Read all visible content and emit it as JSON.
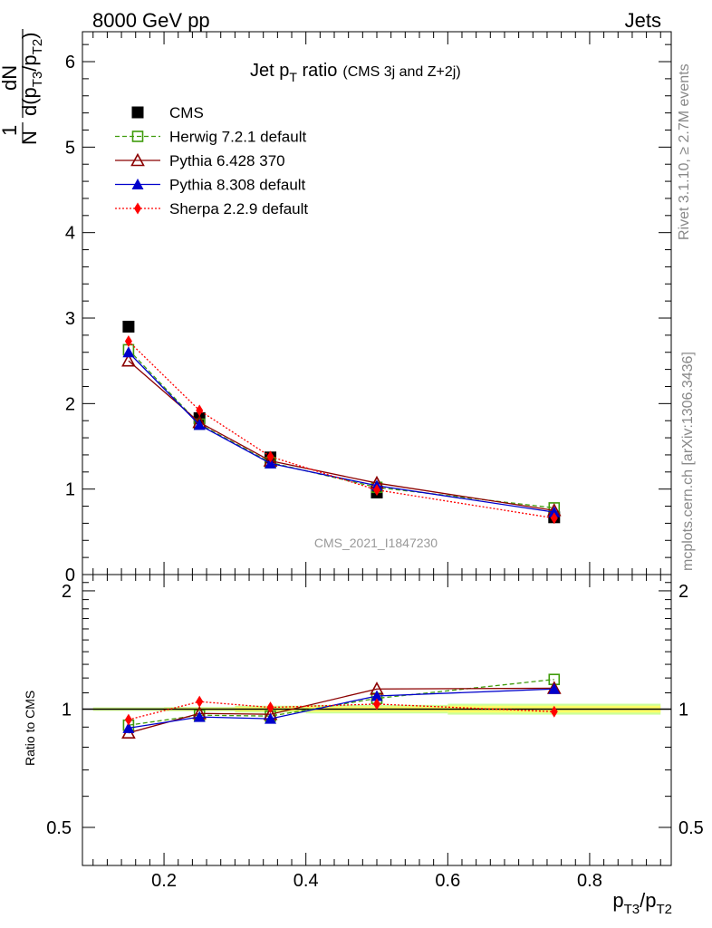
{
  "header": {
    "left": "8000 GeV pp",
    "right": "Jets"
  },
  "side": {
    "rivet": "Rivet 3.1.10, ≥ 2.7M events",
    "mcplots": "mcplots.cern.ch [arXiv:1306.3436]"
  },
  "watermark": "CMS_2021_I1847230",
  "title": {
    "main": "Jet p",
    "sub": "T",
    "rest": " ratio",
    "small": "(CMS 3j and Z+2j)"
  },
  "ylabel_top": {
    "frac_num": "1",
    "frac_den": "N",
    "dN": "dN",
    "d": "d(p",
    "sub1": "T3",
    "slash": "/p",
    "sub2": "T2",
    "close": ")"
  },
  "ylabel_bottom": "Ratio to CMS",
  "xlabel": {
    "p1": "p",
    "s1": "T3",
    "p2": "/p",
    "s2": "T2"
  },
  "colors": {
    "CMS": "#000000",
    "Herwig": "#3f9b0b",
    "Pythia6": "#8b0000",
    "Pythia8": "#0000cc",
    "Sherpa": "#ff0000",
    "band_inner": "#ffff66",
    "band_outer": "#ccff99"
  },
  "chart_data": [
    {
      "type": "scatter",
      "x_range": [
        0.085,
        0.915
      ],
      "ylim": [
        0,
        6.35
      ],
      "y_ticks": [
        0,
        1,
        2,
        3,
        4,
        5,
        6
      ],
      "legend_position": "top-left",
      "series": [
        {
          "name": "CMS",
          "key": "CMS",
          "style": "data-square",
          "x": [
            0.15,
            0.25,
            0.35,
            0.5,
            0.75
          ],
          "y": [
            2.9,
            1.83,
            1.37,
            0.96,
            0.67
          ]
        },
        {
          "name": "Herwig 7.2.1 default",
          "key": "Herwig",
          "style": "open-square-dashed",
          "x": [
            0.15,
            0.25,
            0.35,
            0.5,
            0.75
          ],
          "y": [
            2.63,
            1.76,
            1.31,
            1.02,
            0.78
          ]
        },
        {
          "name": "Pythia 6.428 370",
          "key": "Pythia6",
          "style": "open-triangle-solid",
          "x": [
            0.15,
            0.25,
            0.35,
            0.5,
            0.75
          ],
          "y": [
            2.5,
            1.78,
            1.33,
            1.07,
            0.75
          ]
        },
        {
          "name": "Pythia 8.308 default",
          "key": "Pythia8",
          "style": "filled-triangle-solid",
          "x": [
            0.15,
            0.25,
            0.35,
            0.5,
            0.75
          ],
          "y": [
            2.6,
            1.75,
            1.3,
            1.04,
            0.73
          ]
        },
        {
          "name": "Sherpa 2.2.9 default",
          "key": "Sherpa",
          "style": "diamond-dotted",
          "x": [
            0.15,
            0.25,
            0.35,
            0.5,
            0.75
          ],
          "y": [
            2.73,
            1.92,
            1.38,
            0.99,
            0.66
          ]
        }
      ]
    },
    {
      "type": "line",
      "ylabel": "Ratio to CMS",
      "scale": "log",
      "x_range": [
        0.085,
        0.915
      ],
      "ylim": [
        0.4,
        2.2
      ],
      "y_ticks": [
        0.5,
        1,
        2
      ],
      "x_ticks": [
        0.2,
        0.4,
        0.6,
        0.8
      ],
      "band": {
        "x": [
          0.1,
          0.2,
          0.3,
          0.4,
          0.6,
          0.9
        ],
        "inner": [
          0.005,
          0.007,
          0.012,
          0.015,
          0.02
        ],
        "outer": [
          0.01,
          0.012,
          0.02,
          0.025,
          0.032
        ]
      },
      "series": [
        {
          "name": "Herwig 7.2.1 default",
          "key": "Herwig",
          "style": "open-square-dashed",
          "x": [
            0.15,
            0.25,
            0.35,
            0.5,
            0.75
          ],
          "y": [
            0.91,
            0.965,
            0.96,
            1.065,
            1.19
          ]
        },
        {
          "name": "Pythia 6.428 370",
          "key": "Pythia6",
          "style": "open-triangle-solid",
          "x": [
            0.15,
            0.25,
            0.35,
            0.5,
            0.75
          ],
          "y": [
            0.87,
            0.975,
            0.97,
            1.125,
            1.13
          ]
        },
        {
          "name": "Pythia 8.308 default",
          "key": "Pythia8",
          "style": "filled-triangle-solid",
          "x": [
            0.15,
            0.25,
            0.35,
            0.5,
            0.75
          ],
          "y": [
            0.895,
            0.955,
            0.945,
            1.08,
            1.125
          ]
        },
        {
          "name": "Sherpa 2.2.9 default",
          "key": "Sherpa",
          "style": "diamond-dotted",
          "x": [
            0.15,
            0.25,
            0.35,
            0.5,
            0.75
          ],
          "y": [
            0.94,
            1.045,
            1.01,
            1.03,
            0.985
          ]
        }
      ]
    }
  ]
}
